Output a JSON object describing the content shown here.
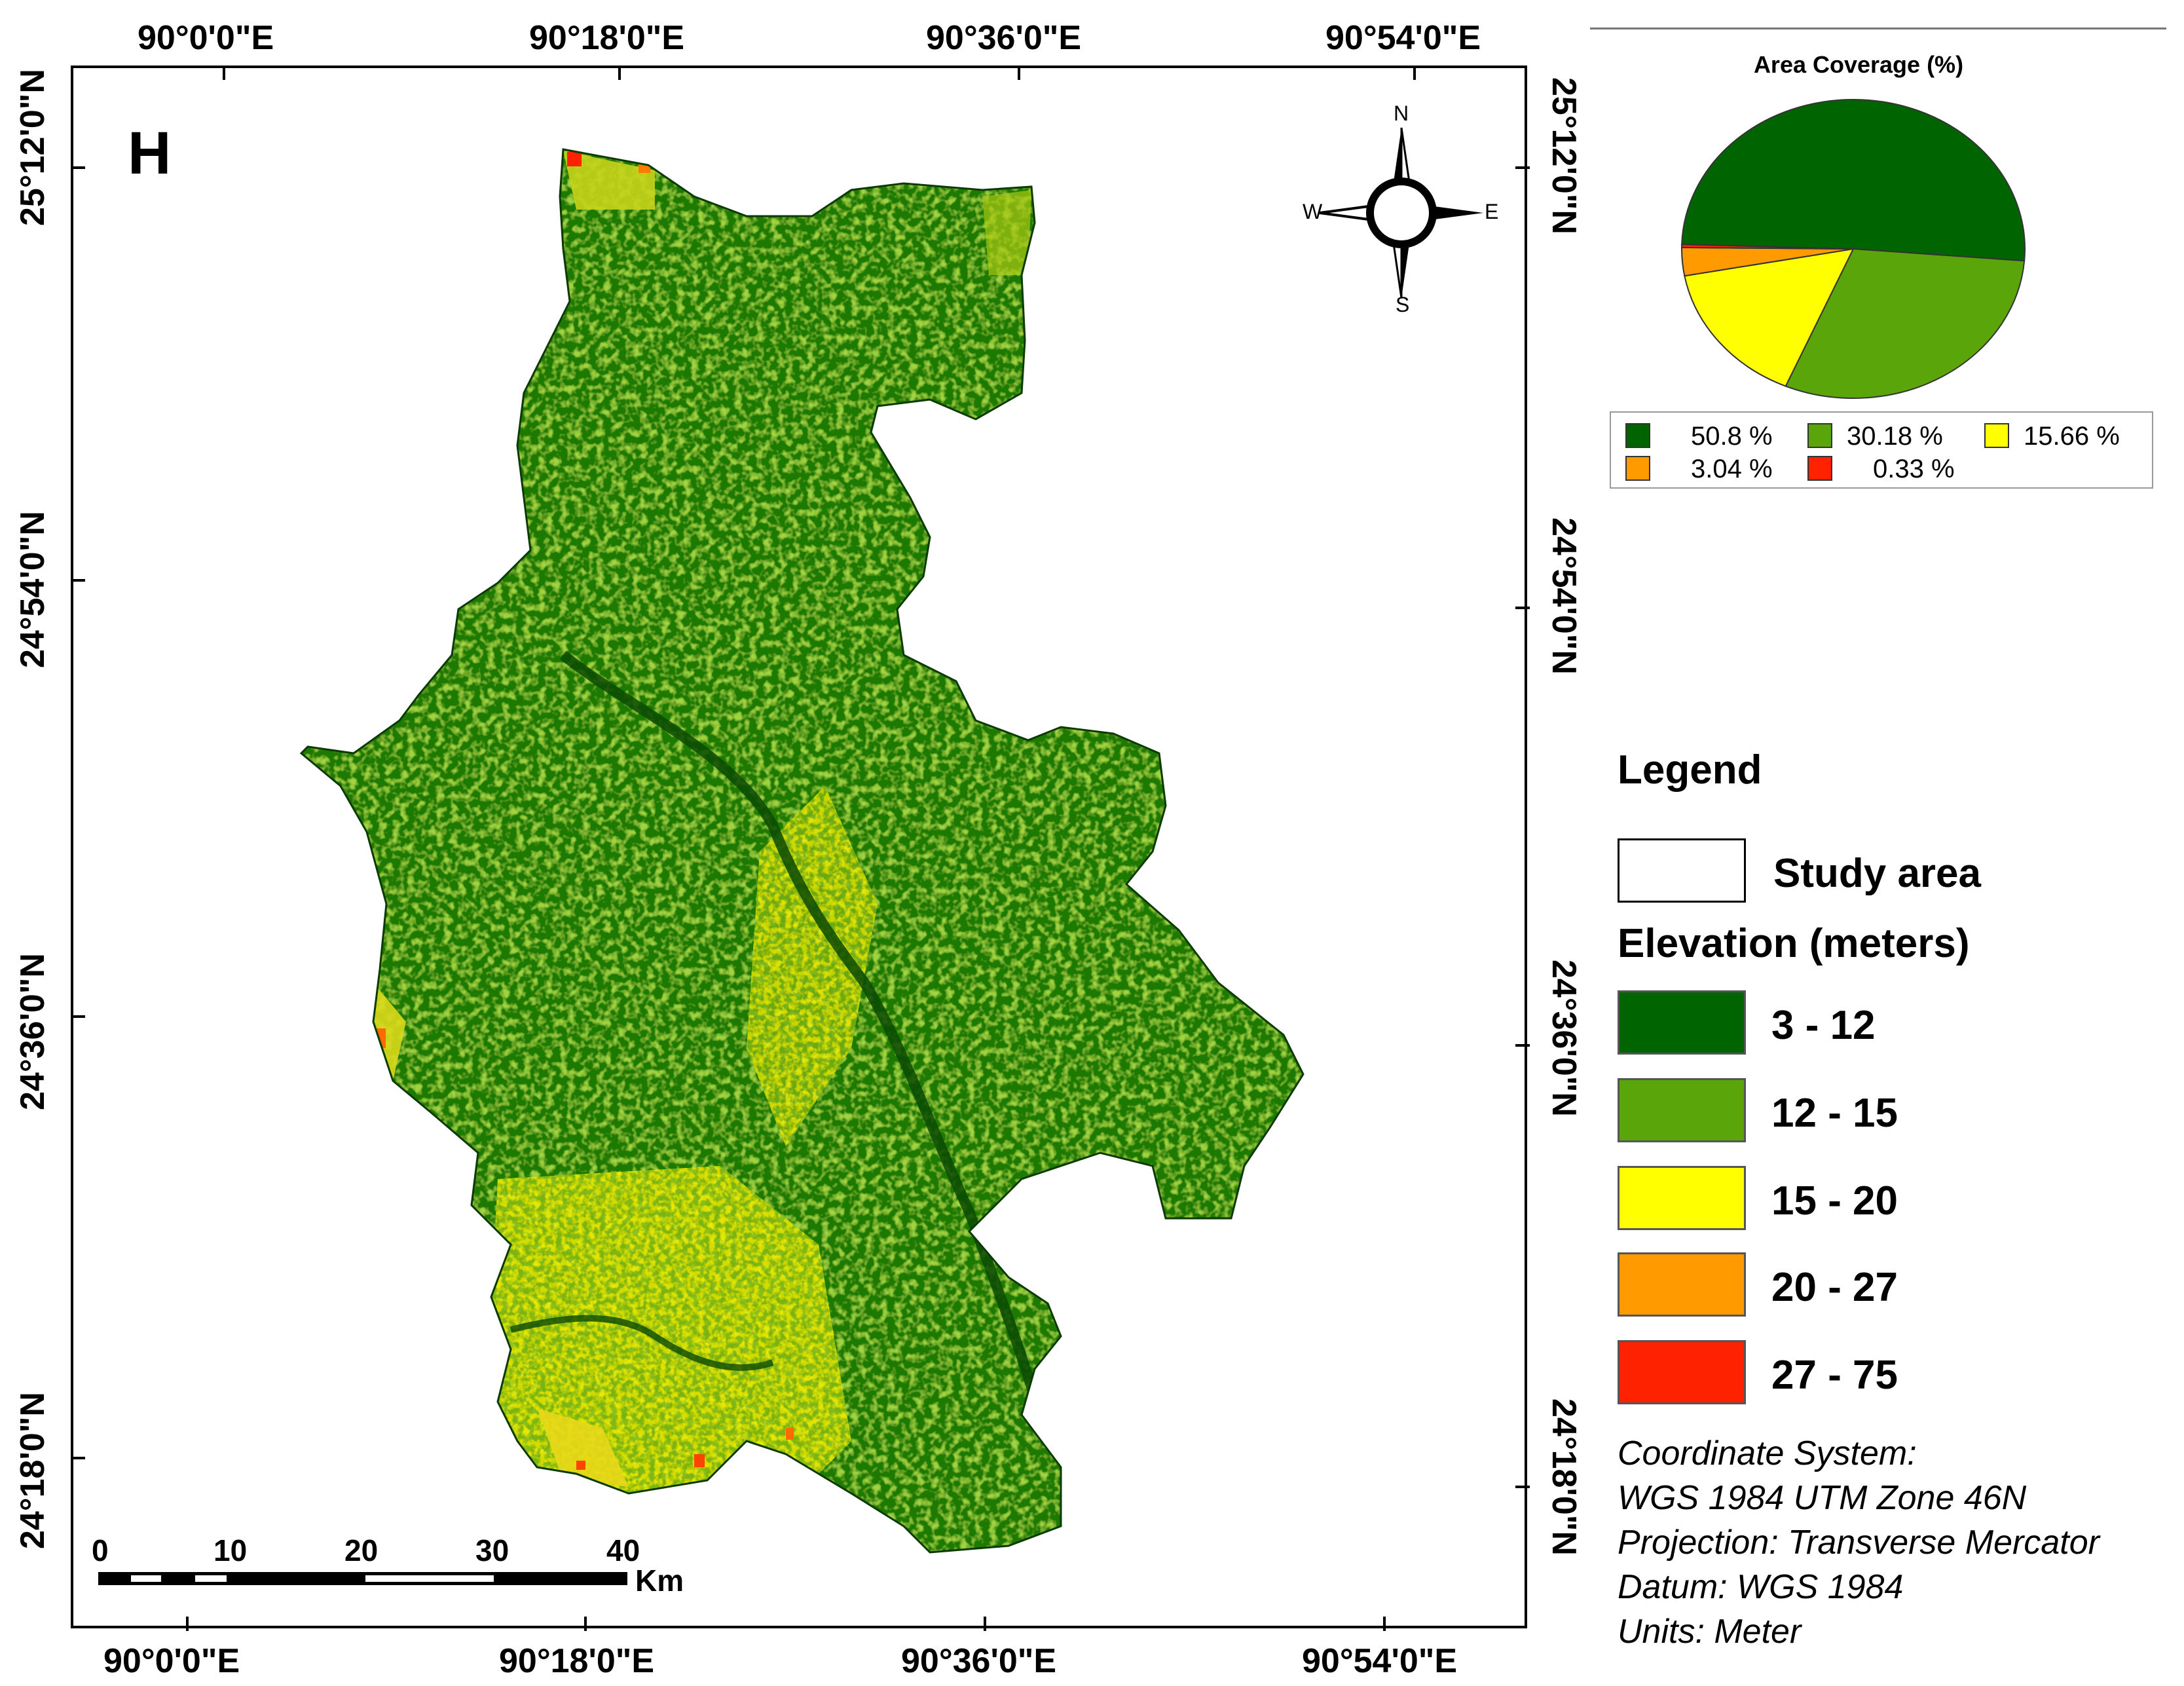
{
  "panel_label": "H",
  "graticule": {
    "top_lon": [
      "90°0'0\"E",
      "90°18'0\"E",
      "90°36'0\"E",
      "90°54'0\"E"
    ],
    "bottom_lon": [
      "90°0'0\"E",
      "90°18'0\"E",
      "90°36'0\"E",
      "90°54'0\"E"
    ],
    "left_lat": [
      "25°12'0\"N",
      "24°54'0\"N",
      "24°36'0\"N",
      "24°18'0\"N"
    ],
    "right_lat": [
      "25°12'0\"N",
      "24°54'0\"N",
      "24°36'0\"N",
      "24°18'0\"N"
    ]
  },
  "north_arrow": {
    "n": "N",
    "s": "S",
    "e": "E",
    "w": "W"
  },
  "scale_bar": {
    "ticks": [
      "0",
      "10",
      "20",
      "30",
      "40"
    ],
    "unit": "Km"
  },
  "pie_chart": {
    "title": "Area Coverage (%)",
    "slices": [
      {
        "label": "50.8 %",
        "value": 50.8,
        "color": "#006400"
      },
      {
        "label": "30.18 %",
        "value": 30.18,
        "color": "#5aa60a"
      },
      {
        "label": "15.66 %",
        "value": 15.66,
        "color": "#ffff00"
      },
      {
        "label": "3.04 %",
        "value": 3.04,
        "color": "#ff9a00"
      },
      {
        "label": "0.33 %",
        "value": 0.33,
        "color": "#ff2200"
      }
    ]
  },
  "legend": {
    "title": "Legend",
    "study_area": "Study area",
    "elevation_title": "Elevation (meters)",
    "classes": [
      {
        "label": "3 - 12",
        "color": "#006400"
      },
      {
        "label": "12 - 15",
        "color": "#5aa60a"
      },
      {
        "label": "15 - 20",
        "color": "#ffff00"
      },
      {
        "label": "20 - 27",
        "color": "#ff9a00"
      },
      {
        "label": "27 - 75",
        "color": "#ff2200"
      }
    ]
  },
  "coordinate_info": {
    "line1": "Coordinate System:",
    "line2": "WGS 1984 UTM Zone 46N",
    "line3": "Projection: Transverse Mercator",
    "line4": "Datum: WGS 1984",
    "line5": "Units: Meter"
  }
}
